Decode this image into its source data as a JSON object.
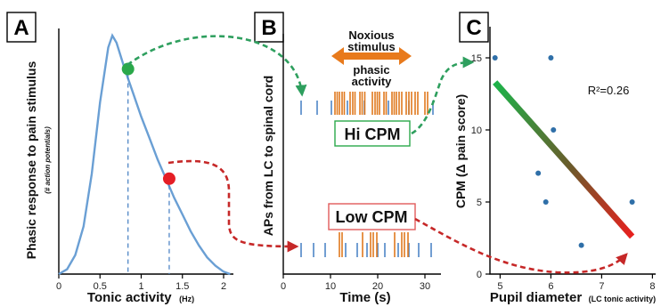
{
  "panels": {
    "a": {
      "letter": "A",
      "ylabel": "Phasic response to pain stimulus",
      "ylabel_sub": "(# action potentials)",
      "xlabel": "Tonic activity",
      "xlabel_unit": "(Hz)",
      "xticks": [
        "0",
        "0.5",
        "1",
        "1.5",
        "2"
      ]
    },
    "b": {
      "letter": "B",
      "ylabel": "APs from LC to spinal cord",
      "xlabel": "Time (s)",
      "xticks": [
        "0",
        "10",
        "20",
        "30"
      ],
      "stimulus_line1": "Noxious",
      "stimulus_line2": "stimulus",
      "phasic_line1": "phasic",
      "phasic_line2": "activity",
      "hi_label": "Hi CPM",
      "low_label": "Low CPM"
    },
    "c": {
      "letter": "C",
      "ylabel": "CPM (Δ pain score)",
      "xlabel": "Pupil diameter",
      "xlabel_sub": "(LC tonic activity)",
      "xticks": [
        "5",
        "6",
        "7",
        "8"
      ],
      "yticks": [
        "0",
        "5",
        "10",
        "15"
      ],
      "r2_label": "R²=0.26"
    }
  },
  "colors": {
    "curve": "#6a9fd4",
    "tonic_spike": "#4f86c6",
    "phasic_spike": "#e07a1f",
    "arrow_orange": "#e87a1c",
    "green_dot": "#2aa84a",
    "red_dot": "#e51e25",
    "green_arrow": "#2e9f5e",
    "red_arrow": "#c62828",
    "hi_box_border": "#2aa84a",
    "low_box_border": "#e05a5a"
  },
  "chart_data": [
    {
      "type": "line",
      "xlabel": "Tonic activity (Hz)",
      "ylabel": "Phasic response to pain stimulus (# action potentials)",
      "xlim": [
        0,
        2.25
      ],
      "x": [
        0,
        0.1,
        0.2,
        0.3,
        0.4,
        0.5,
        0.6,
        0.65,
        0.7,
        0.8,
        0.9,
        1.0,
        1.1,
        1.2,
        1.3,
        1.4,
        1.5,
        1.6,
        1.7,
        1.8,
        1.9,
        2.0,
        2.08
      ],
      "values": [
        0,
        0.02,
        0.08,
        0.2,
        0.42,
        0.72,
        0.95,
        1.0,
        0.97,
        0.86,
        0.76,
        0.66,
        0.57,
        0.48,
        0.4,
        0.32,
        0.25,
        0.18,
        0.12,
        0.07,
        0.035,
        0.01,
        0
      ],
      "markers": [
        {
          "x": 0.84,
          "y": 0.86,
          "color": "green"
        },
        {
          "x": 1.34,
          "y": 0.4,
          "color": "red"
        }
      ]
    },
    {
      "type": "scatter",
      "xlabel": "Pupil diameter (LC tonic activity)",
      "ylabel": "CPM (Δ pain score)",
      "xlim": [
        4.8,
        8
      ],
      "ylim": [
        0,
        16
      ],
      "x": [
        4.9,
        6.0,
        6.05,
        5.75,
        5.9,
        6.6,
        7.6
      ],
      "y": [
        15,
        15,
        10,
        7,
        5,
        2,
        5
      ],
      "fit": {
        "x": [
          4.9,
          7.6
        ],
        "y": [
          13.3,
          2.6
        ]
      },
      "annotation": "R²=0.26"
    }
  ]
}
